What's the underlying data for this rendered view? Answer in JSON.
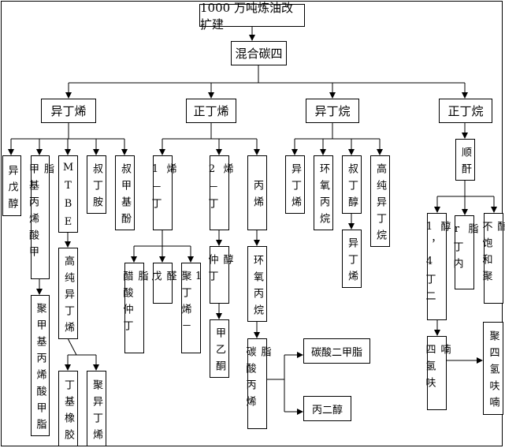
{
  "title": "1000 万吨炼油改扩建",
  "root": "混合碳四",
  "level2": [
    "异丁烯",
    "正丁烯",
    "异丁烷",
    "正丁烷"
  ],
  "isobutene_products": [
    "异戊醇",
    "甲基丙烯酸甲脂",
    "MTBE",
    "叔丁胺",
    "叔甲基酚"
  ],
  "isobutene_sub": {
    "pmma": "聚甲基丙烯酸甲脂",
    "high_purity_isobutene": "高纯异丁烯",
    "butyl_rubber": "丁基橡胶",
    "polyisobutene": "聚异丁烯"
  },
  "nbutene_products": [
    "1－丁烯",
    "2－丁烯",
    "丙烯"
  ],
  "butene1_sub": [
    "醋酸仲丁脂",
    "戊醛",
    "聚丁烯－1"
  ],
  "butene2_sub": {
    "sec_butanol": "仲丁醇",
    "mek": "甲乙酮"
  },
  "propylene_sub": {
    "propylene_oxide": "环氧丙烷",
    "propylene_carbonate": "碳酸丙烯脂",
    "dmc": "碳酸二甲脂",
    "propylene_glycol": "丙二醇"
  },
  "isobutane_products": [
    "异丁烯",
    "环氧丙烷",
    "叔丁醇",
    "高纯异丁烷"
  ],
  "tba_sub": "异丁烯",
  "nbutane_products": {
    "maleic_anhydride": "顺酐",
    "bdo": "1，4丁二醇",
    "gbl": "r丁内脂",
    "upr": "不饱和聚酯",
    "thf": "四氢呋喃",
    "ptmeg": "聚四氢呋喃"
  }
}
